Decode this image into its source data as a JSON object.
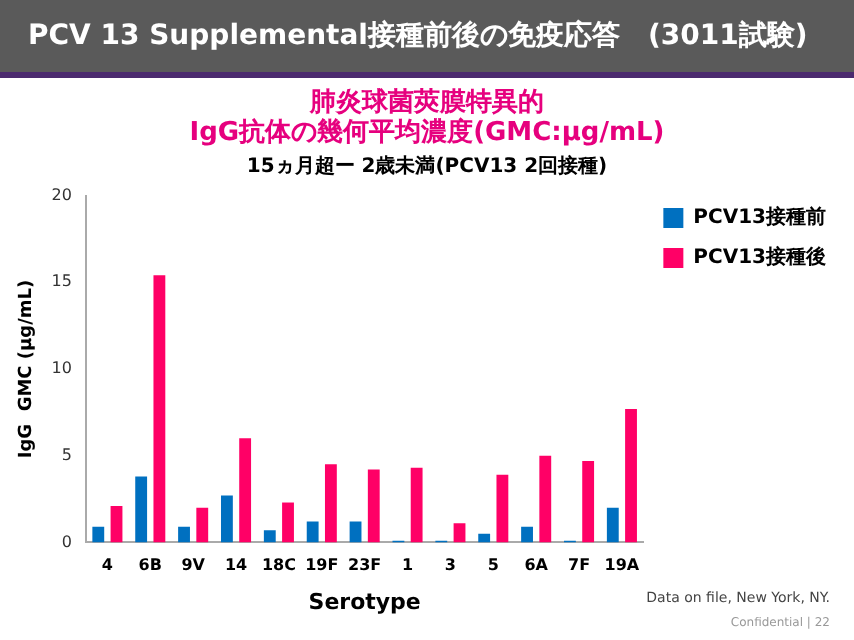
{
  "chart_data": {
    "type": "bar",
    "title": "PCV 13 Supplemental接種前後の免疫応答　(3011試験)",
    "subtitle": "肺炎球菌莢膜特異的\nIgG抗体の幾何平均濃度(GMC:μg/mL)",
    "annotations": [
      "15ヵ月超ー 2歳未満(PCV13  2回接種)",
      "Data on file, New York, NY.",
      "Confidential | 22"
    ],
    "xlabel": "Serotype",
    "ylabel": "IgG  GMC (μg/mL)",
    "categories": [
      "4",
      "6B",
      "9V",
      "14",
      "18C",
      "19F",
      "23F",
      "1",
      "3",
      "5",
      "6A",
      "7F",
      "19A"
    ],
    "series": [
      {
        "name": "PCV13接種前",
        "color": "#0070c0",
        "values": [
          0.9,
          3.8,
          0.9,
          2.7,
          0.7,
          1.2,
          1.2,
          0.1,
          0.1,
          0.5,
          0.9,
          0.1,
          2.0
        ]
      },
      {
        "name": "PCV13接種後",
        "color": "#ff0066",
        "values": [
          2.1,
          15.4,
          2.0,
          6.0,
          2.3,
          4.5,
          4.2,
          4.3,
          1.1,
          3.9,
          5.0,
          4.7,
          7.7
        ]
      }
    ],
    "ylim": [
      0,
      20
    ],
    "yticks": [
      0,
      5,
      10,
      15,
      20
    ],
    "grid": false,
    "legend": "top right"
  }
}
